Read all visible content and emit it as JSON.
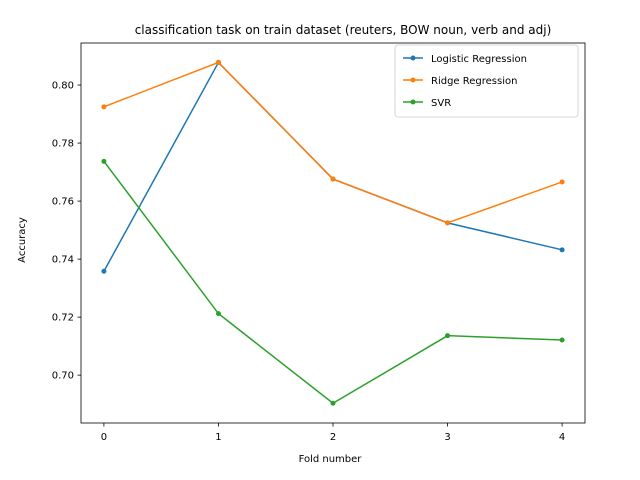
{
  "chart_data": {
    "type": "line",
    "title": "classification task on train dataset (reuters, BOW noun, verb and adj)",
    "xlabel": "Fold number",
    "ylabel": "Accuracy",
    "x": [
      0,
      1,
      2,
      3,
      4
    ],
    "x_ticks": [
      "0",
      "1",
      "2",
      "3",
      "4"
    ],
    "y_ticks": [
      "0.70",
      "0.72",
      "0.74",
      "0.76",
      "0.78",
      "0.80"
    ],
    "ylim": [
      0.6835,
      0.8145
    ],
    "xlim": [
      -0.2,
      4.2
    ],
    "grid": false,
    "legend_position": "top-right",
    "series": [
      {
        "name": "Logistic Regression",
        "color": "#1f77b4",
        "values": [
          0.7358,
          0.8078,
          0.7676,
          0.7525,
          0.7432
        ]
      },
      {
        "name": "Ridge Regression",
        "color": "#ff7f0e",
        "values": [
          0.7925,
          0.8078,
          0.7676,
          0.7525,
          0.7666
        ]
      },
      {
        "name": "SVR",
        "color": "#2ca02c",
        "values": [
          0.7737,
          0.7212,
          0.6903,
          0.7136,
          0.7121
        ]
      }
    ]
  }
}
